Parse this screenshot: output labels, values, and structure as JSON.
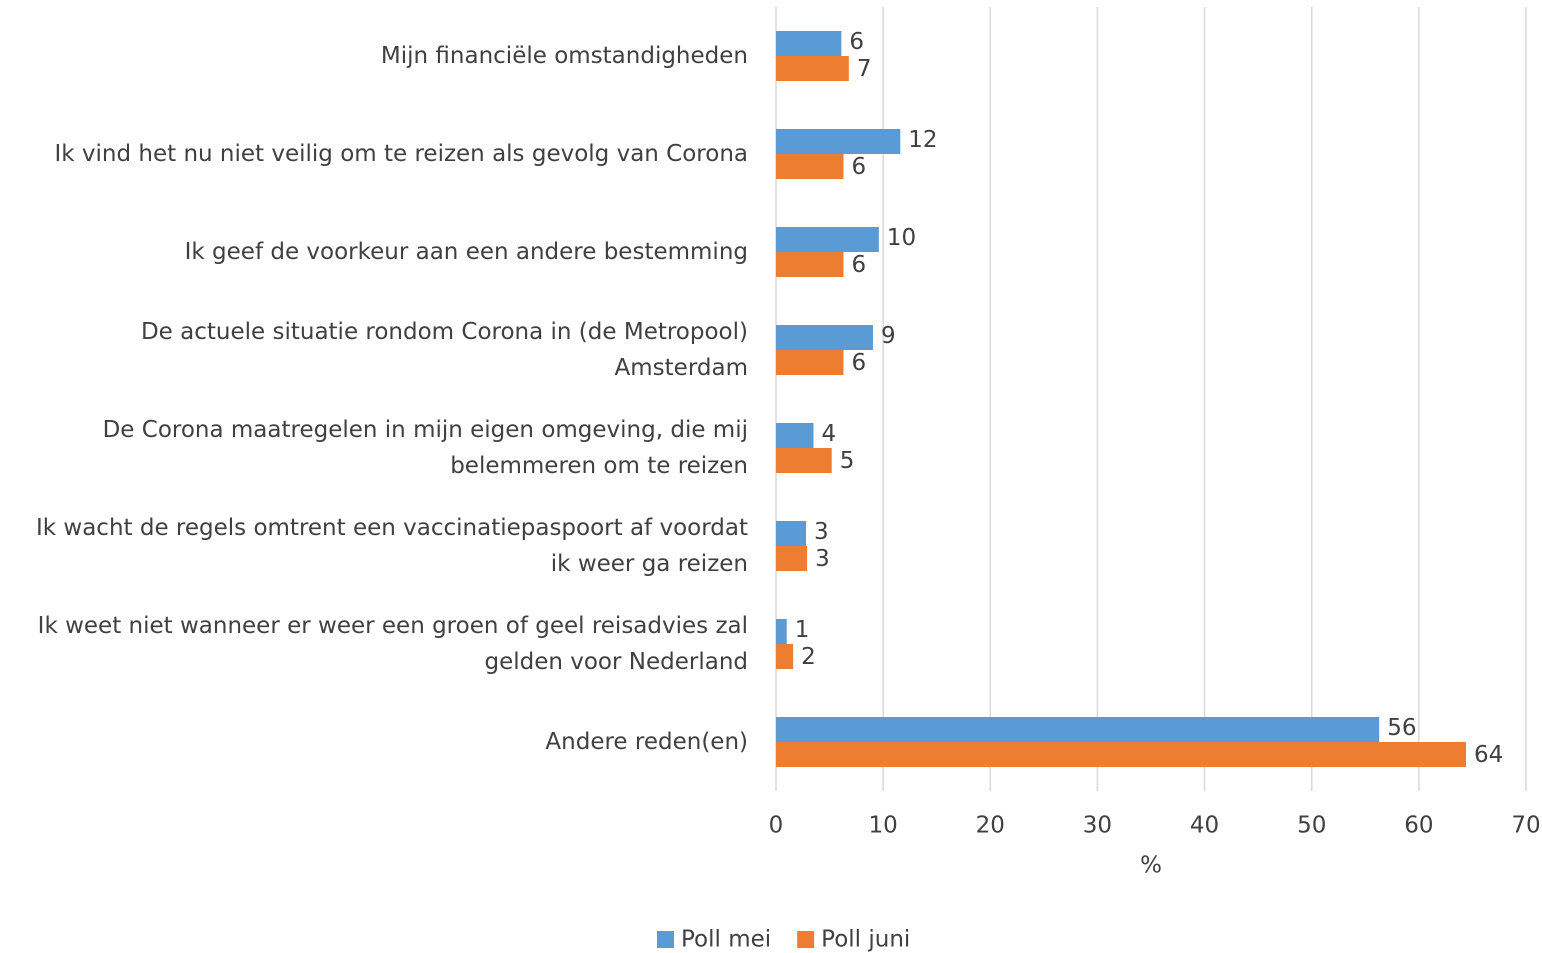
{
  "chart_data": {
    "type": "hbar",
    "categories": [
      [
        "Mijn financiële omstandigheden"
      ],
      [
        "Ik vind het nu niet veilig om te reizen als gevolg van Corona"
      ],
      [
        "Ik geef de voorkeur aan een andere bestemming"
      ],
      [
        "De actuele situatie rondom Corona in (de Metropool)",
        "Amsterdam"
      ],
      [
        "De Corona maatregelen in mijn eigen omgeving, die mij",
        "belemmeren om te reizen"
      ],
      [
        "Ik wacht de regels omtrent een vaccinatiepaspoort af voordat",
        "ik weer ga reizen"
      ],
      [
        "Ik weet niet wanneer er weer een groen of geel reisadvies zal",
        "gelden voor Nederland"
      ],
      [
        "Andere reden(en)"
      ]
    ],
    "series": [
      {
        "name": "Poll mei",
        "color": "#5b9bd5",
        "values": [
          6.1,
          11.6,
          9.6,
          9.05,
          3.5,
          2.8,
          1.0,
          56.3
        ],
        "value_labels": [
          "6",
          "12",
          "10",
          "9",
          "4",
          "3",
          "1",
          "56"
        ]
      },
      {
        "name": "Poll juni",
        "color": "#ed7d31",
        "values": [
          6.8,
          6.3,
          6.3,
          6.3,
          5.2,
          2.9,
          1.6,
          64.4
        ],
        "value_labels": [
          "7",
          "6",
          "6",
          "6",
          "5",
          "3",
          "2",
          "64"
        ]
      }
    ],
    "xlabel": "%",
    "xlim": [
      0,
      70
    ],
    "xticks": [
      0,
      10,
      20,
      30,
      40,
      50,
      60,
      70
    ],
    "grid": true,
    "legend": "bottom"
  }
}
